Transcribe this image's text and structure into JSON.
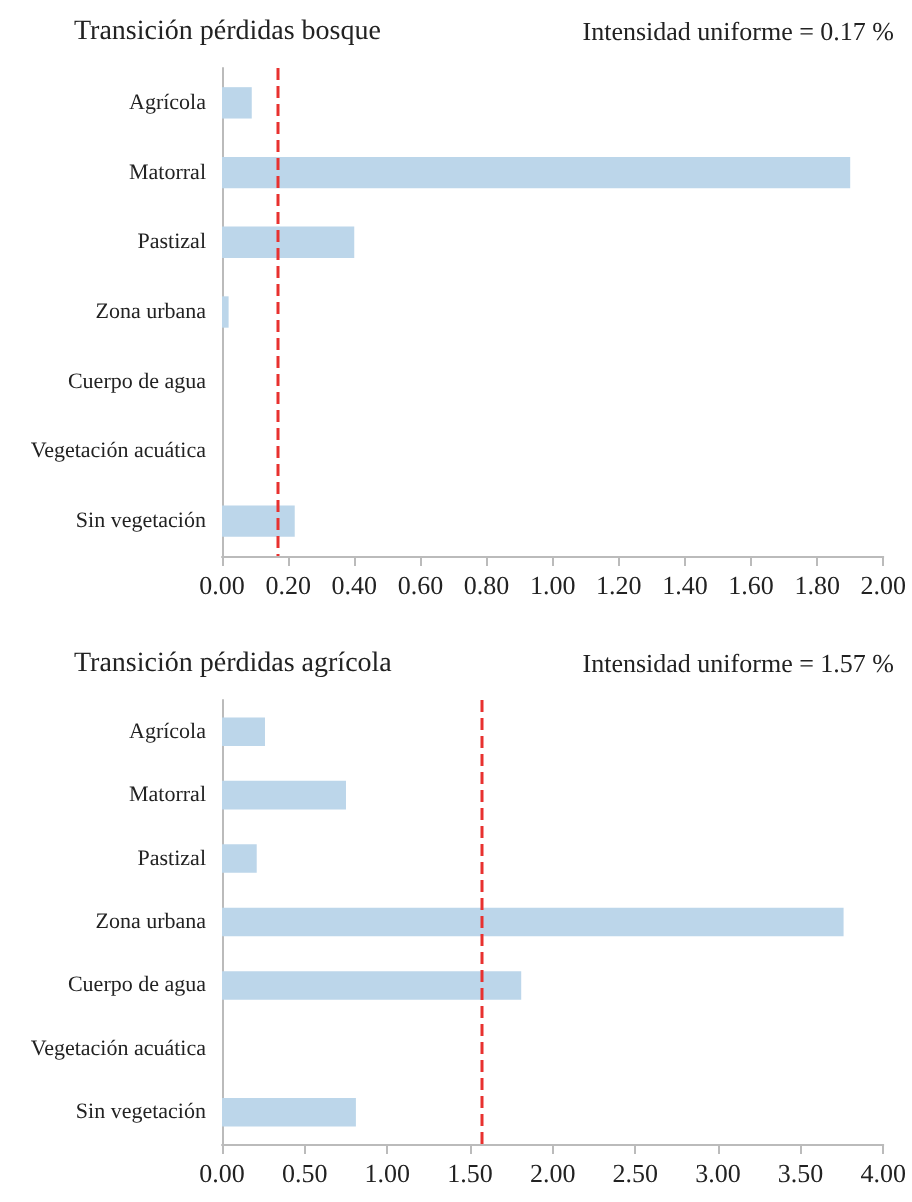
{
  "chart_data": [
    {
      "type": "bar",
      "orientation": "horizontal",
      "title": "Transición pérdidas bosque",
      "categories": [
        "Agrícola",
        "Matorral",
        "Pastizal",
        "Zona urbana",
        "Cuerpo de agua",
        "Vegetación acuática",
        "Sin vegetación"
      ],
      "values": [
        0.09,
        1.9,
        0.4,
        0.02,
        0,
        0,
        0.22
      ],
      "color": "#bcd6ea",
      "xlim": [
        0,
        2
      ],
      "xticks": [
        {
          "value": 0,
          "label": "0.00"
        },
        {
          "value": 0.2,
          "label": "0.20"
        },
        {
          "value": 0.4,
          "label": "0.40"
        },
        {
          "value": 0.6,
          "label": "0.60"
        },
        {
          "value": 0.8,
          "label": "0.80"
        },
        {
          "value": 1,
          "label": "1.00"
        },
        {
          "value": 1.2,
          "label": "1.20"
        },
        {
          "value": 1.4,
          "label": "1.40"
        },
        {
          "value": 1.6,
          "label": "1.60"
        },
        {
          "value": 1.8,
          "label": "1.80"
        },
        {
          "value": 2,
          "label": "2.00"
        }
      ],
      "subtitle": "Intensidad uniforme = 0.17 %",
      "ref_lines": [
        {
          "axis": "x",
          "value": 0.17,
          "color": "#e8312f",
          "line_style": "dashed"
        }
      ],
      "grid": false
    },
    {
      "type": "bar",
      "orientation": "horizontal",
      "title": "Transición pérdidas agrícola",
      "categories": [
        "Agrícola",
        "Matorral",
        "Pastizal",
        "Zona urbana",
        "Cuerpo de agua",
        "Vegetación acuática",
        "Sin vegetación"
      ],
      "values": [
        0.26,
        0.75,
        0.21,
        3.76,
        1.81,
        0,
        0.81
      ],
      "color": "#bcd6ea",
      "xlim": [
        0,
        4
      ],
      "xticks": [
        {
          "value": 0,
          "label": "0.00"
        },
        {
          "value": 0.5,
          "label": "0.50"
        },
        {
          "value": 1,
          "label": "1.00"
        },
        {
          "value": 1.5,
          "label": "1.50"
        },
        {
          "value": 2,
          "label": "2.00"
        },
        {
          "value": 2.5,
          "label": "2.50"
        },
        {
          "value": 3,
          "label": "3.00"
        },
        {
          "value": 3.5,
          "label": "3.50"
        },
        {
          "value": 4,
          "label": "4.00"
        }
      ],
      "subtitle": "Intensidad uniforme = 1.57 %",
      "ref_lines": [
        {
          "axis": "x",
          "value": 1.57,
          "color": "#e8312f",
          "line_style": "dashed"
        }
      ],
      "grid": false
    }
  ]
}
